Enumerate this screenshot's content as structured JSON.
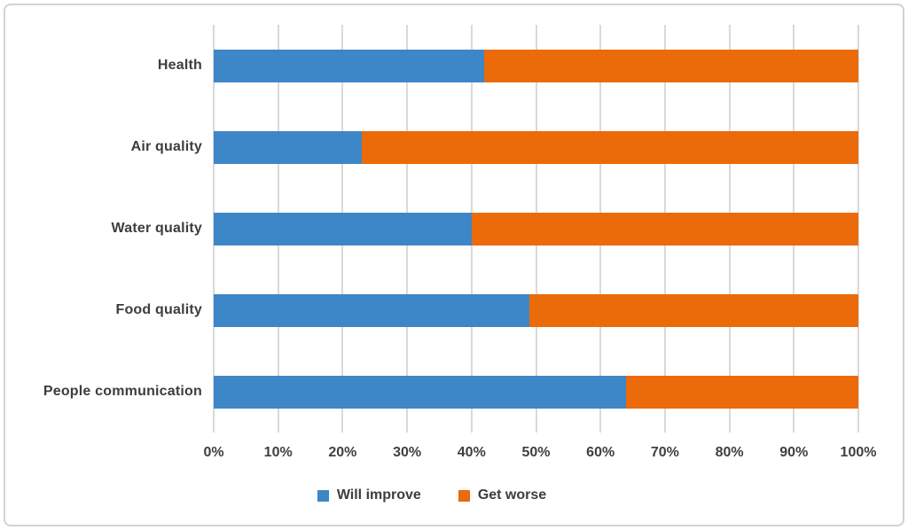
{
  "chart_data": {
    "type": "bar",
    "orientation": "horizontal",
    "stacked": true,
    "title": "",
    "xlabel": "",
    "ylabel": "",
    "xlim": [
      0,
      100
    ],
    "grid": true,
    "legend_position": "bottom",
    "categories": [
      "Health",
      "Air quality",
      "Water quality",
      "Food quality",
      "People communication"
    ],
    "series": [
      {
        "name": "Will improve",
        "color": "#3D86C8",
        "values": [
          42,
          23,
          40,
          49,
          64
        ]
      },
      {
        "name": "Get worse",
        "color": "#EB6A0A",
        "values": [
          58,
          77,
          60,
          51,
          36
        ]
      }
    ],
    "x_ticks": [
      0,
      10,
      20,
      30,
      40,
      50,
      60,
      70,
      80,
      90,
      100
    ],
    "x_tick_labels": [
      "0%",
      "10%",
      "20%",
      "30%",
      "40%",
      "50%",
      "60%",
      "70%",
      "80%",
      "90%",
      "100%"
    ],
    "colors": {
      "gridline": "#d9d9d9",
      "label_text": "#3d3d3d",
      "border": "#d2d2d2"
    }
  }
}
